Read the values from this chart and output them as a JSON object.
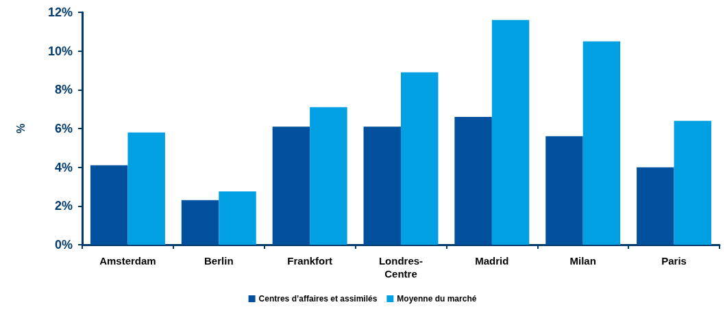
{
  "chart_data": {
    "type": "bar",
    "ylabel": "%",
    "categories": [
      "Amsterdam",
      "Berlin",
      "Frankfort",
      "Londres-\nCentre",
      "Madrid",
      "Milan",
      "Paris"
    ],
    "series": [
      {
        "name": "Centres d’affaires et assimilés",
        "color": "#00509e",
        "values": [
          4.1,
          2.3,
          6.1,
          6.1,
          6.6,
          5.6,
          4.0
        ]
      },
      {
        "name": "Moyenne du marché",
        "color": "#00a0e3",
        "values": [
          5.8,
          2.75,
          7.1,
          8.9,
          11.6,
          10.5,
          6.4
        ]
      }
    ],
    "ylim": [
      0,
      12
    ],
    "yticks": [
      {
        "value": 0,
        "label": "0%"
      },
      {
        "value": 2,
        "label": "2%"
      },
      {
        "value": 4,
        "label": "4%"
      },
      {
        "value": 6,
        "label": "6%"
      },
      {
        "value": 8,
        "label": "8%"
      },
      {
        "value": 10,
        "label": "10%"
      },
      {
        "value": 12,
        "label": "12%"
      }
    ],
    "grid": false,
    "legend": "bottom"
  }
}
